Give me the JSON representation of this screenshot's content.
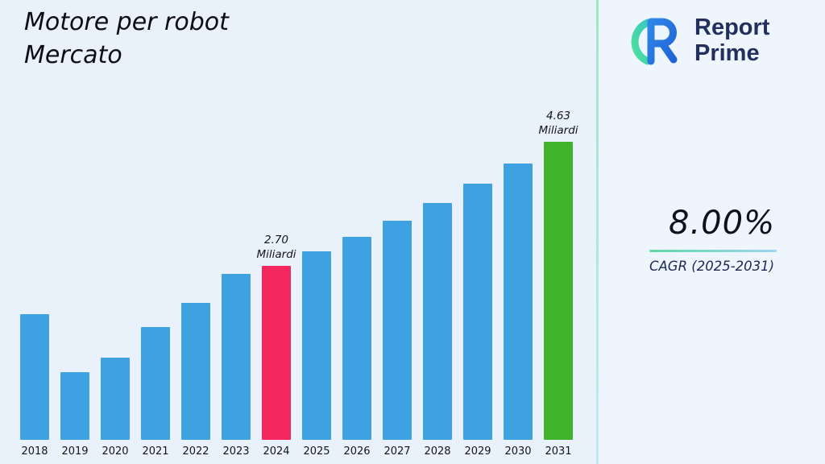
{
  "title": {
    "line1": "Motore per robot",
    "line2": "Mercato"
  },
  "logo": {
    "name": "Report Prime",
    "line1": "Report",
    "line2": "Prime"
  },
  "stats": {
    "cagr_value": "8.00%",
    "cagr_label": "CAGR (2025-2031)"
  },
  "colors": {
    "background": "#e9f2fa",
    "right_panel": "#eef5fd",
    "navy_text": "#232f5c",
    "divider_green": "#9fe8c2"
  },
  "chart_data": {
    "type": "bar",
    "title": "Motore per robot Mercato",
    "unit": "Miliardi",
    "categories": [
      "2018",
      "2019",
      "2020",
      "2021",
      "2022",
      "2023",
      "2024",
      "2025",
      "2026",
      "2027",
      "2028",
      "2029",
      "2030",
      "2031"
    ],
    "values": [
      1.95,
      1.05,
      1.27,
      1.75,
      2.12,
      2.58,
      2.7,
      2.92,
      3.15,
      3.4,
      3.67,
      3.97,
      4.29,
      4.63
    ],
    "ylim": [
      0,
      5
    ],
    "grid": false,
    "legend": false,
    "annotations": {
      "2024": [
        "2.70",
        "Miliardi"
      ],
      "2031": [
        "4.63",
        "Miliardi"
      ]
    },
    "colors": {
      "default": "#3ea2e2",
      "2024": "#f5275f",
      "2031": "#3fb42b"
    }
  }
}
